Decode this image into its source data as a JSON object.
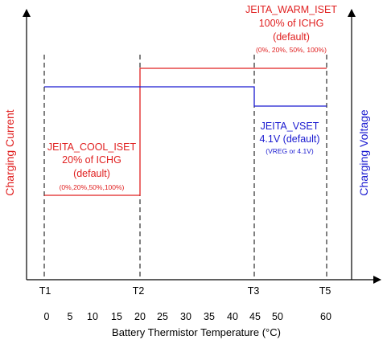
{
  "colors": {
    "current": "#e02020",
    "voltage": "#1a1ad0",
    "axis": "#000000"
  },
  "axes": {
    "left_label": "Charging Current",
    "right_label": "Charging Voltage",
    "x_label": "Battery Thermistor Temperature (°C)"
  },
  "thresholds": [
    "T1",
    "T2",
    "T3",
    "T5"
  ],
  "temperature_ticks": [
    "0",
    "5",
    "10",
    "15",
    "20",
    "25",
    "30",
    "35",
    "40",
    "45",
    "50",
    "60"
  ],
  "warm_iset": {
    "name": "JEITA_WARM_ISET",
    "value": "100% of ICHG",
    "note": "(default)",
    "options": "(0%, 20%, 50%, 100%)"
  },
  "cool_iset": {
    "name": "JEITA_COOL_ISET",
    "value": "20% of ICHG",
    "note": "(default)",
    "options": "(0%,20%,50%,100%)"
  },
  "vset": {
    "name": "JEITA_VSET",
    "value": "4.1V (default)",
    "options": "(VREG or 4.1V)"
  }
}
